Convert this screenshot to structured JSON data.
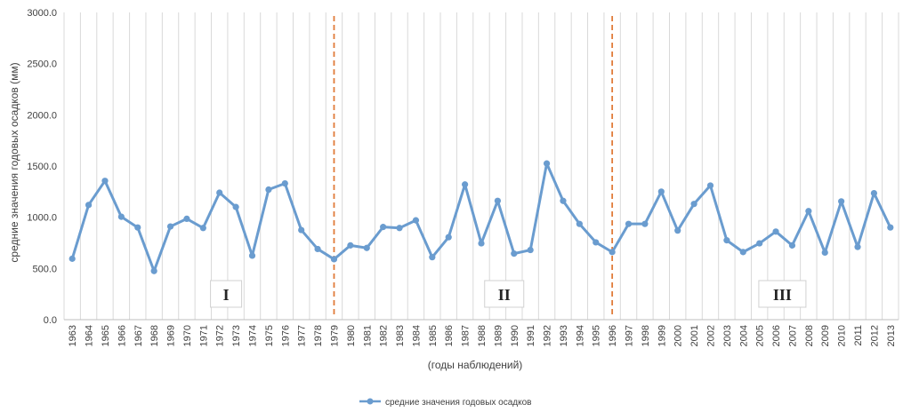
{
  "chart_data": {
    "type": "line",
    "xlabel": "(годы наблюдений)",
    "ylabel": "средние значения годовых осадков (мм)",
    "ylim": [
      0,
      3000
    ],
    "yticks": [
      "0.0",
      "500.0",
      "1000.0",
      "1500.0",
      "2000.0",
      "2500.0",
      "3000.0"
    ],
    "ytick_values": [
      0,
      500,
      1000,
      1500,
      2000,
      2500,
      3000
    ],
    "grid": "vertical",
    "legend_position": "bottom",
    "categories": [
      "1963",
      "1964",
      "1965",
      "1966",
      "1967",
      "1968",
      "1969",
      "1970",
      "1971",
      "1972",
      "1973",
      "1974",
      "1975",
      "1976",
      "1977",
      "1978",
      "1979",
      "1980",
      "1981",
      "1982",
      "1983",
      "1984",
      "1985",
      "1986",
      "1987",
      "1988",
      "1989",
      "1990",
      "1991",
      "1992",
      "1993",
      "1994",
      "1995",
      "1996",
      "1997",
      "1998",
      "1999",
      "2000",
      "2001",
      "2002",
      "2003",
      "2004",
      "2005",
      "2006",
      "2007",
      "2008",
      "2009",
      "2010",
      "2011",
      "2012",
      "2013"
    ],
    "series": [
      {
        "name": "средние значения годовых осадков",
        "color": "#6a9ccf",
        "values": [
          595,
          1120,
          1355,
          1005,
          900,
          475,
          910,
          985,
          895,
          1240,
          1100,
          625,
          1270,
          1330,
          875,
          690,
          590,
          725,
          700,
          905,
          895,
          970,
          610,
          805,
          1320,
          745,
          1160,
          645,
          680,
          1525,
          1160,
          935,
          755,
          660,
          935,
          935,
          1250,
          870,
          1130,
          1310,
          775,
          660,
          745,
          860,
          725,
          1060,
          655,
          1155,
          710,
          1235,
          900
        ]
      }
    ],
    "dividers": {
      "color": "#e07b39",
      "after_categories": [
        "1979",
        "1996"
      ]
    },
    "periods": [
      {
        "label": "I",
        "category": "1972"
      },
      {
        "label": "II",
        "category": "1989"
      },
      {
        "label": "III",
        "category": "2006"
      }
    ]
  }
}
